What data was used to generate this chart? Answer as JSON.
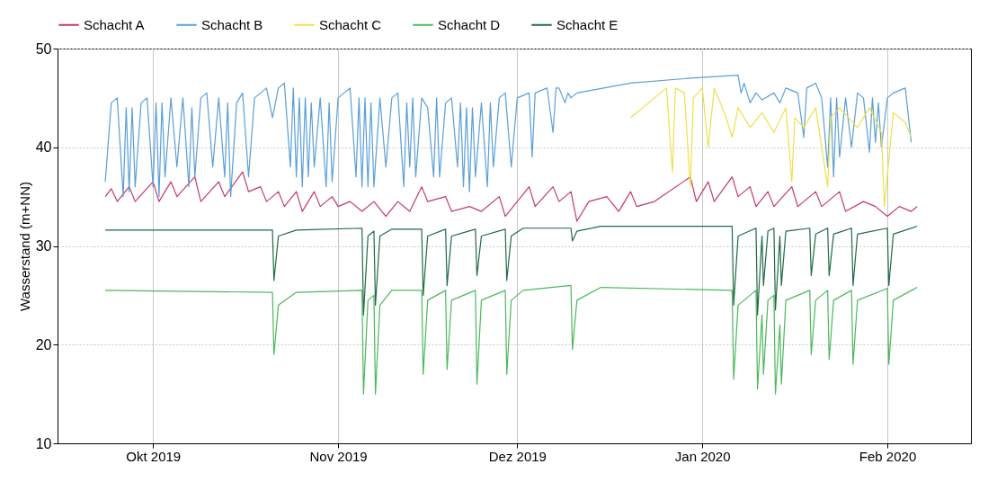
{
  "chart_data": {
    "type": "line",
    "ylabel": "Wasserstand (m+NN)",
    "xlim": [
      "2019-09-15",
      "2020-02-15"
    ],
    "xticks": [
      {
        "value": "2019-10-01",
        "label": "Okt 2019"
      },
      {
        "value": "2019-11-01",
        "label": "Nov 2019"
      },
      {
        "value": "2019-12-01",
        "label": "Dez 2019"
      },
      {
        "value": "2020-01-01",
        "label": "Jan 2020"
      },
      {
        "value": "2020-02-01",
        "label": "Feb 2020"
      }
    ],
    "ylim": [
      10,
      50
    ],
    "yticks": [
      10,
      20,
      30,
      40,
      50
    ],
    "grid": true,
    "legend": "top",
    "marker": "none",
    "line_style": "solid",
    "series": [
      {
        "name": "Schacht A",
        "color": "#c23b64",
        "x": [
          "2019-09-23",
          "2019-09-24",
          "2019-09-25",
          "2019-09-27",
          "2019-09-28",
          "2019-10-01",
          "2019-10-02",
          "2019-10-04",
          "2019-10-05",
          "2019-10-08",
          "2019-10-09",
          "2019-10-12",
          "2019-10-13",
          "2019-10-16",
          "2019-10-17",
          "2019-10-19",
          "2019-10-20",
          "2019-10-22",
          "2019-10-23",
          "2019-10-25",
          "2019-10-26",
          "2019-10-28",
          "2019-10-29",
          "2019-10-31",
          "2019-11-01",
          "2019-11-03",
          "2019-11-05",
          "2019-11-07",
          "2019-11-09",
          "2019-11-11",
          "2019-11-13",
          "2019-11-15",
          "2019-11-16",
          "2019-11-19",
          "2019-11-20",
          "2019-11-23",
          "2019-11-25",
          "2019-11-28",
          "2019-11-29",
          "2019-12-01",
          "2019-12-03",
          "2019-12-04",
          "2019-12-07",
          "2019-12-08",
          "2019-12-10",
          "2019-12-11",
          "2019-12-13",
          "2019-12-16",
          "2019-12-18",
          "2019-12-20",
          "2019-12-21",
          "2019-12-24",
          "2019-12-30",
          "2019-12-31",
          "2020-01-02",
          "2020-01-03",
          "2020-01-06",
          "2020-01-07",
          "2020-01-09",
          "2020-01-10",
          "2020-01-12",
          "2020-01-13",
          "2020-01-16",
          "2020-01-17",
          "2020-01-20",
          "2020-01-21",
          "2020-01-24",
          "2020-01-25",
          "2020-01-28",
          "2020-01-30",
          "2020-02-01",
          "2020-02-03",
          "2020-02-05",
          "2020-02-06"
        ],
        "values": [
          35,
          35.8,
          34.5,
          36,
          34.5,
          36.5,
          34.5,
          36.5,
          35,
          37,
          34.5,
          36.5,
          35,
          37.5,
          35.5,
          36,
          34.5,
          35.5,
          34,
          35.5,
          33.5,
          35.5,
          34,
          35,
          34,
          34.5,
          33.5,
          34.5,
          33,
          34.5,
          33.5,
          36,
          34.5,
          35,
          33.5,
          34,
          33.5,
          35,
          33,
          34.5,
          36,
          34,
          36,
          34.5,
          35.5,
          32.5,
          34.5,
          35,
          33.5,
          35.5,
          34,
          34.5,
          37,
          34.5,
          36.5,
          34.5,
          37,
          35,
          36,
          34,
          35.5,
          34,
          36,
          34,
          35.5,
          34,
          35.5,
          33.5,
          34.5,
          34,
          33,
          34,
          33.5,
          34
        ]
      },
      {
        "name": "Schacht B",
        "color": "#5b9fd6",
        "x": [
          "2019-09-23",
          "2019-09-24",
          "2019-09-25",
          "2019-09-26",
          "2019-09-26T12:00",
          "2019-09-27",
          "2019-09-27T12:00",
          "2019-09-28",
          "2019-09-29",
          "2019-09-30",
          "2019-10-01",
          "2019-10-01T12:00",
          "2019-10-02",
          "2019-10-02T12:00",
          "2019-10-03",
          "2019-10-04",
          "2019-10-05",
          "2019-10-06",
          "2019-10-07",
          "2019-10-07T12:00",
          "2019-10-08",
          "2019-10-09",
          "2019-10-10",
          "2019-10-11",
          "2019-10-12",
          "2019-10-13",
          "2019-10-13T12:00",
          "2019-10-14",
          "2019-10-15",
          "2019-10-16",
          "2019-10-17",
          "2019-10-18",
          "2019-10-20",
          "2019-10-21",
          "2019-10-22",
          "2019-10-23",
          "2019-10-24",
          "2019-10-24T12:00",
          "2019-10-25",
          "2019-10-25T12:00",
          "2019-10-26",
          "2019-10-26T12:00",
          "2019-10-27",
          "2019-10-27T12:00",
          "2019-10-28",
          "2019-10-29",
          "2019-10-30",
          "2019-10-30T12:00",
          "2019-10-31",
          "2019-11-01",
          "2019-11-02",
          "2019-11-03",
          "2019-11-04",
          "2019-11-04T12:00",
          "2019-11-05",
          "2019-11-05T12:00",
          "2019-11-06",
          "2019-11-06T12:00",
          "2019-11-07",
          "2019-11-08",
          "2019-11-09",
          "2019-11-10",
          "2019-11-11",
          "2019-11-12",
          "2019-11-12T12:00",
          "2019-11-13",
          "2019-11-13T12:00",
          "2019-11-14",
          "2019-11-15",
          "2019-11-16",
          "2019-11-17",
          "2019-11-17T12:00",
          "2019-11-18",
          "2019-11-19",
          "2019-11-20",
          "2019-11-21",
          "2019-11-21T12:00",
          "2019-11-22",
          "2019-11-22T12:00",
          "2019-11-23",
          "2019-11-23T12:00",
          "2019-11-24",
          "2019-11-25",
          "2019-11-26",
          "2019-11-26T12:00",
          "2019-11-27",
          "2019-11-28",
          "2019-11-29",
          "2019-11-30",
          "2019-12-01",
          "2019-12-03",
          "2019-12-03T12:00",
          "2019-12-04",
          "2019-12-06",
          "2019-12-07",
          "2019-12-07T12:00",
          "2019-12-08",
          "2019-12-09",
          "2019-12-09T12:00",
          "2019-12-10",
          "2019-12-11",
          "2019-12-20",
          "2019-12-30",
          "2020-01-07",
          "2020-01-07T12:00",
          "2020-01-08",
          "2020-01-09",
          "2020-01-10",
          "2020-01-11",
          "2020-01-13",
          "2020-01-14",
          "2020-01-15",
          "2020-01-17",
          "2020-01-18",
          "2020-01-18T12:00",
          "2020-01-20",
          "2020-01-21",
          "2020-01-22",
          "2020-01-22T12:00",
          "2020-01-23",
          "2020-01-23T12:00",
          "2020-01-24",
          "2020-01-25",
          "2020-01-26",
          "2020-01-27",
          "2020-01-28",
          "2020-01-29",
          "2020-01-29T12:00",
          "2020-01-30",
          "2020-01-30T12:00",
          "2020-01-31",
          "2020-02-01",
          "2020-02-02",
          "2020-02-04",
          "2020-02-05"
        ],
        "values": [
          36.5,
          44.5,
          45,
          35,
          44,
          35.5,
          44,
          36,
          44.5,
          45,
          36,
          44.5,
          35,
          44.5,
          37,
          45,
          38,
          45,
          36,
          44,
          37,
          45,
          45.5,
          38,
          45,
          37,
          44.5,
          35,
          44.5,
          45.5,
          37,
          45,
          46,
          43,
          46,
          46.5,
          38,
          46,
          37,
          45,
          36,
          45,
          37,
          44.5,
          38,
          45,
          36,
          44.5,
          36.5,
          45,
          45.5,
          46,
          37,
          45,
          36,
          45,
          36,
          44.5,
          36,
          45,
          38,
          45,
          45.5,
          36,
          44.5,
          38,
          45,
          37,
          45,
          44,
          37,
          45,
          37,
          44.5,
          45,
          38,
          44.5,
          36,
          44,
          35.5,
          44,
          37,
          44.5,
          36,
          44.5,
          38,
          45,
          45.5,
          38,
          45,
          45.5,
          39,
          45.5,
          46,
          41.5,
          46,
          46,
          44.5,
          45.5,
          45,
          45.5,
          46.5,
          47,
          47.3,
          45.5,
          46.5,
          44.5,
          45.5,
          44.8,
          45.5,
          44.5,
          46,
          45.5,
          41,
          46,
          46.5,
          45,
          38,
          45,
          37,
          45,
          39,
          45,
          40,
          45.5,
          45,
          39.5,
          45,
          40.5,
          44.5,
          40,
          45,
          45.5,
          46,
          40.5
        ]
      },
      {
        "name": "Schacht C",
        "color": "#eee04a",
        "x": [
          "2019-12-20",
          "2019-12-23",
          "2019-12-26",
          "2019-12-27",
          "2019-12-27T12:00",
          "2019-12-29",
          "2019-12-30",
          "2019-12-30T12:00",
          "2020-01-01",
          "2020-01-02",
          "2020-01-03",
          "2020-01-05",
          "2020-01-06",
          "2020-01-07",
          "2020-01-09",
          "2020-01-11",
          "2020-01-13",
          "2020-01-15",
          "2020-01-16",
          "2020-01-16T12:00",
          "2020-01-18",
          "2020-01-20",
          "2020-01-22",
          "2020-01-22T12:00",
          "2020-01-24",
          "2020-01-27",
          "2020-01-29",
          "2020-01-31",
          "2020-01-31T12:00",
          "2020-02-02",
          "2020-02-04",
          "2020-02-05"
        ],
        "values": [
          43,
          44.5,
          46,
          37.5,
          46,
          45.5,
          36,
          45,
          46,
          40,
          46,
          43,
          41,
          44,
          42,
          43.5,
          41.5,
          44,
          36.5,
          43,
          42,
          44,
          36,
          43,
          44,
          42,
          44,
          41.5,
          34,
          43.5,
          42.5,
          41
        ]
      },
      {
        "name": "Schacht D",
        "color": "#4cb85c",
        "x": [
          "2019-09-23",
          "2019-10-21",
          "2019-10-21T06:00",
          "2019-10-22",
          "2019-10-25",
          "2019-11-05",
          "2019-11-05T06:00",
          "2019-11-06",
          "2019-11-07",
          "2019-11-07T06:00",
          "2019-11-08",
          "2019-11-10",
          "2019-11-15",
          "2019-11-15T06:00",
          "2019-11-16",
          "2019-11-19",
          "2019-11-19T06:00",
          "2019-11-20",
          "2019-11-24",
          "2019-11-24T06:00",
          "2019-11-25",
          "2019-11-29",
          "2019-11-29T06:00",
          "2019-11-30",
          "2019-12-02",
          "2019-12-10",
          "2019-12-10T06:00",
          "2019-12-11",
          "2019-12-15",
          "2020-01-06",
          "2020-01-06T06:00",
          "2020-01-07",
          "2020-01-10",
          "2020-01-10T06:00",
          "2020-01-11",
          "2020-01-11T06:00",
          "2020-01-12",
          "2020-01-13",
          "2020-01-13T06:00",
          "2020-01-14",
          "2020-01-14T06:00",
          "2020-01-15",
          "2020-01-19",
          "2020-01-19T06:00",
          "2020-01-20",
          "2020-01-22",
          "2020-01-22T06:00",
          "2020-01-23",
          "2020-01-26",
          "2020-01-26T06:00",
          "2020-01-27",
          "2020-02-01",
          "2020-02-01T06:00",
          "2020-02-02",
          "2020-02-06"
        ],
        "values": [
          25.5,
          25.3,
          19,
          24,
          25.3,
          25.5,
          15,
          24.5,
          25,
          15,
          24,
          25.5,
          25.5,
          17,
          24.5,
          25.5,
          17.5,
          24.5,
          25.5,
          16,
          24.5,
          25.5,
          17,
          24.5,
          25.5,
          26,
          19.5,
          24.5,
          25.8,
          25.5,
          16.5,
          24,
          25.5,
          15.5,
          23,
          17,
          24.5,
          25,
          15,
          22,
          16,
          24.5,
          25.5,
          19,
          24.5,
          25.5,
          18.5,
          24.5,
          25.5,
          18,
          24.5,
          25.7,
          18,
          24.5,
          25.8
        ]
      },
      {
        "name": "Schacht E",
        "color": "#1f6b45",
        "x": [
          "2019-09-23",
          "2019-10-21",
          "2019-10-21T06:00",
          "2019-10-22",
          "2019-10-25",
          "2019-11-05",
          "2019-11-05T06:00",
          "2019-11-06",
          "2019-11-07",
          "2019-11-07T06:00",
          "2019-11-08",
          "2019-11-10",
          "2019-11-15",
          "2019-11-15T06:00",
          "2019-11-16",
          "2019-11-19",
          "2019-11-19T06:00",
          "2019-11-20",
          "2019-11-24",
          "2019-11-24T06:00",
          "2019-11-25",
          "2019-11-29",
          "2019-11-29T06:00",
          "2019-11-30",
          "2019-12-02",
          "2019-12-10",
          "2019-12-10T06:00",
          "2019-12-11",
          "2019-12-15",
          "2020-01-06",
          "2020-01-06T06:00",
          "2020-01-07",
          "2020-01-10",
          "2020-01-10T06:00",
          "2020-01-11",
          "2020-01-11T06:00",
          "2020-01-12",
          "2020-01-13",
          "2020-01-13T06:00",
          "2020-01-14",
          "2020-01-14T06:00",
          "2020-01-15",
          "2020-01-19",
          "2020-01-19T06:00",
          "2020-01-20",
          "2020-01-22",
          "2020-01-22T06:00",
          "2020-01-23",
          "2020-01-26",
          "2020-01-26T06:00",
          "2020-01-27",
          "2020-02-01",
          "2020-02-01T06:00",
          "2020-02-02",
          "2020-02-06"
        ],
        "values": [
          31.6,
          31.6,
          26.5,
          31,
          31.6,
          31.8,
          23,
          31,
          31.5,
          24,
          31,
          31.7,
          31.7,
          25,
          31,
          31.7,
          26,
          31,
          31.7,
          27,
          31,
          31.7,
          26.5,
          31,
          31.8,
          31.8,
          30.5,
          31.5,
          32,
          32,
          24,
          31,
          31.8,
          23,
          31,
          26,
          31.5,
          31.8,
          23.5,
          31,
          26,
          31.5,
          31.8,
          27,
          31.2,
          31.8,
          27,
          31.2,
          31.8,
          26,
          31.2,
          31.8,
          26,
          31.2,
          32
        ]
      }
    ]
  }
}
